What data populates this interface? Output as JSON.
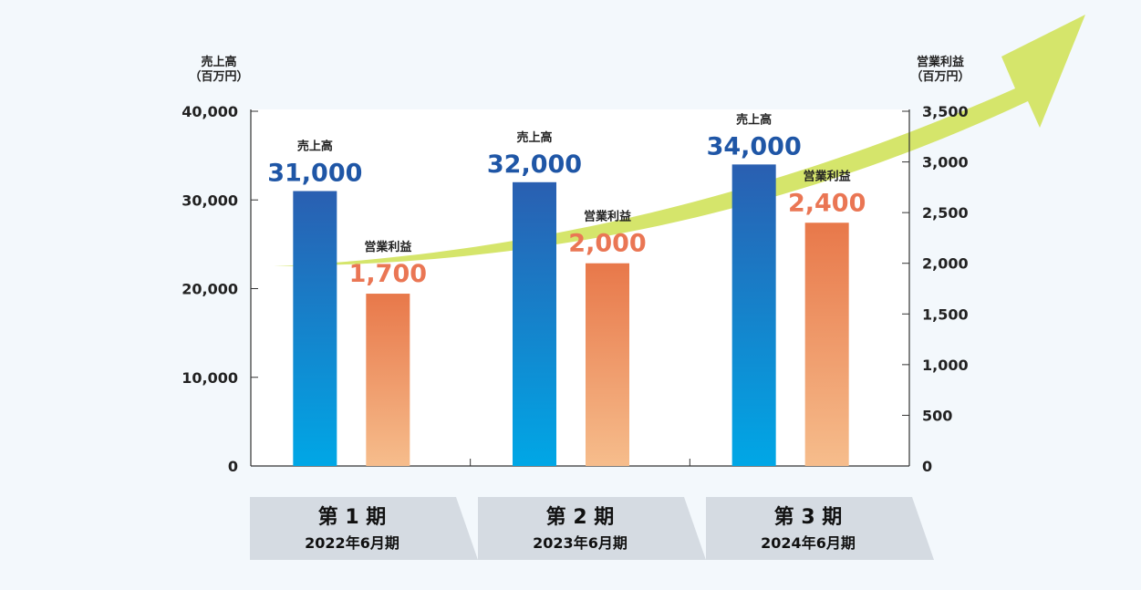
{
  "colors": {
    "sales_bar_top": "#2a5fb1",
    "sales_bar_bottom": "#00a7e6",
    "profit_bar_top": "#e8784a",
    "profit_bar_bottom": "#f6bd8c",
    "sales_value": "#1f56a6",
    "profit_value": "#ea7654",
    "arrow": "#d5e56b",
    "period_box": "#d5dbe2"
  },
  "chart_data": {
    "type": "bar",
    "categories": [
      "第 1 期",
      "第 2 期",
      "第 3 期"
    ],
    "series": [
      {
        "name": "売上高",
        "axis": "left",
        "values": [
          31000,
          32000,
          34000
        ]
      },
      {
        "name": "営業利益",
        "axis": "right",
        "values": [
          1700,
          2000,
          2400
        ]
      }
    ],
    "value_labels": {
      "sales": [
        "31,000",
        "32,000",
        "34,000"
      ],
      "profit": [
        "1,700",
        "2,000",
        "2,400"
      ]
    },
    "left_axis": {
      "title_line1": "売上高",
      "title_line2": "（百万円）",
      "ylim": [
        0,
        40000
      ],
      "ticks": [
        0,
        10000,
        20000,
        30000,
        40000
      ],
      "tick_labels": [
        "0",
        "10,000",
        "20,000",
        "30,000",
        "40,000"
      ]
    },
    "right_axis": {
      "title_line1": "営業利益",
      "title_line2": "（百万円）",
      "ylim": [
        0,
        3500
      ],
      "ticks": [
        0,
        500,
        1000,
        1500,
        2000,
        2500,
        3000,
        3500
      ],
      "tick_labels": [
        "0",
        "500",
        "1,000",
        "1,500",
        "2,000",
        "2,500",
        "3,000",
        "3,500"
      ]
    },
    "periods": [
      {
        "title": "第 1 期",
        "subtitle": "2022年6月期"
      },
      {
        "title": "第 2 期",
        "subtitle": "2023年6月期"
      },
      {
        "title": "第 3 期",
        "subtitle": "2024年6月期"
      }
    ],
    "grid": false,
    "trend_arrow": true
  }
}
